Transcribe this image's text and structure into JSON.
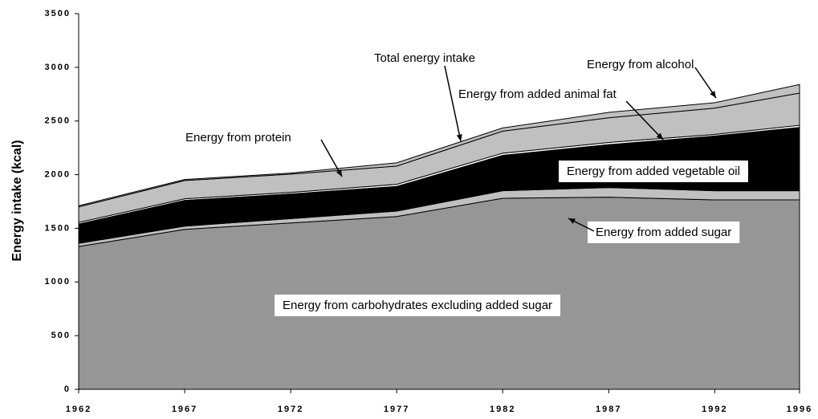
{
  "chart_data": {
    "type": "stacked_area",
    "y_label": "Energy intake (kcal)",
    "x": [
      1962,
      1967,
      1972,
      1977,
      1982,
      1987,
      1992,
      1996
    ],
    "xlim": [
      1962,
      1996
    ],
    "xticks": [
      1962,
      1967,
      1972,
      1977,
      1982,
      1987,
      1992,
      1996
    ],
    "ylim": [
      0,
      3500
    ],
    "yticks": [
      0,
      500,
      1000,
      1500,
      2000,
      2500,
      3000,
      3500
    ],
    "series": [
      {
        "name": "Energy from carbohydrates excluding added sugar",
        "color": "#969696",
        "values": [
          1330,
          1490,
          1550,
          1610,
          1780,
          1790,
          1765,
          1765
        ]
      },
      {
        "name": "Energy from added sugar",
        "color": "#c0c0c0",
        "values": [
          30,
          30,
          40,
          50,
          70,
          90,
          85,
          85
        ]
      },
      {
        "name": "Energy from added vegetable oil",
        "color": "#000000",
        "values": [
          180,
          240,
          230,
          230,
          330,
          400,
          510,
          590
        ]
      },
      {
        "name": "Energy from added animal fat",
        "color": "#ffffff",
        "values": [
          15,
          15,
          15,
          20,
          20,
          20,
          15,
          20
        ]
      },
      {
        "name": "Energy from protein",
        "color": "#c0c0c0",
        "values": [
          145,
          170,
          170,
          170,
          205,
          230,
          245,
          300
        ]
      },
      {
        "name": "Energy from alcohol",
        "color": "#c0c0c0",
        "values": [
          10,
          10,
          10,
          30,
          30,
          50,
          50,
          80
        ]
      }
    ],
    "annotations": [
      "Total energy intake"
    ]
  }
}
